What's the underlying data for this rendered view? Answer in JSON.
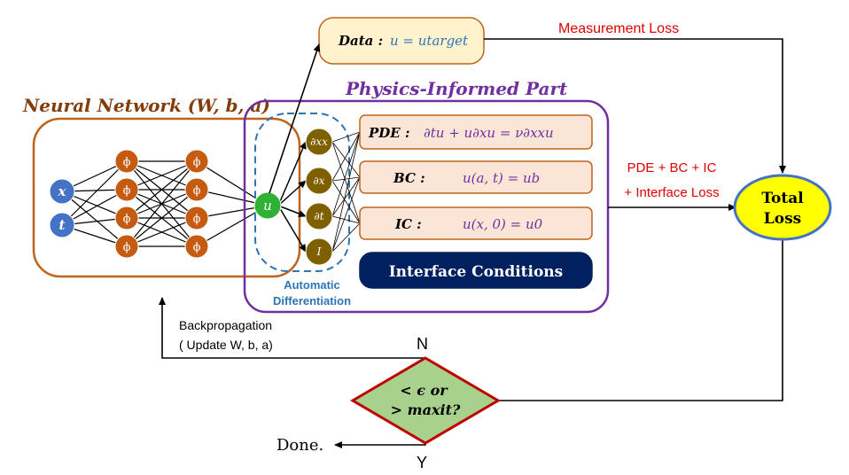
{
  "neural_network": {
    "title": "Neural Network (W, b, a)",
    "inputs": [
      "x",
      "t"
    ],
    "hidden_symbol": "ϕ",
    "output": "u",
    "colors": {
      "input": "#4472c4",
      "hidden": "#c55a11",
      "output": "#2eb135",
      "frame": "#c0631a"
    }
  },
  "physics": {
    "title": "Physics-Informed Part",
    "derivatives": [
      "∂xx",
      "∂x",
      "∂t",
      "I"
    ],
    "autodiff_label_1": "Automatic",
    "autodiff_label_2": "Differentiation",
    "pde_label": "PDE :",
    "pde_eq": "∂tu + u∂xu = ν∂xxu",
    "bc_label": "BC :",
    "bc_eq": "u(a, t) = ub",
    "ic_label": "IC :",
    "ic_eq": "u(x, 0) = u0",
    "interface": "Interface Conditions",
    "colors": {
      "frame": "#7030a0",
      "dashed": "#2e75b6",
      "deriv": "#7f6000",
      "box_fill": "#fbe5d6",
      "box_stroke": "#c0631a",
      "interface_fill": "#002060"
    }
  },
  "data_box": {
    "label": "Data :",
    "eq": "u = utarget"
  },
  "losses": {
    "measurement": "Measurement Loss",
    "physics_line1": "PDE + BC + IC",
    "physics_line2": "+ Interface Loss",
    "total_line1": "Total",
    "total_line2": "Loss",
    "colors": {
      "loss_text": "#e00000",
      "total_fill": "#ffff00",
      "total_stroke": "#4472c4"
    }
  },
  "decision": {
    "line1": "< ϵ or",
    "line2": "> maxit?",
    "no": "N",
    "yes": "Y",
    "done": "Done.",
    "colors": {
      "fill": "#a9d18e",
      "stroke": "#c00000"
    }
  },
  "backprop": {
    "line1": "Backpropagation",
    "line2": "( Update W, b, a)"
  }
}
